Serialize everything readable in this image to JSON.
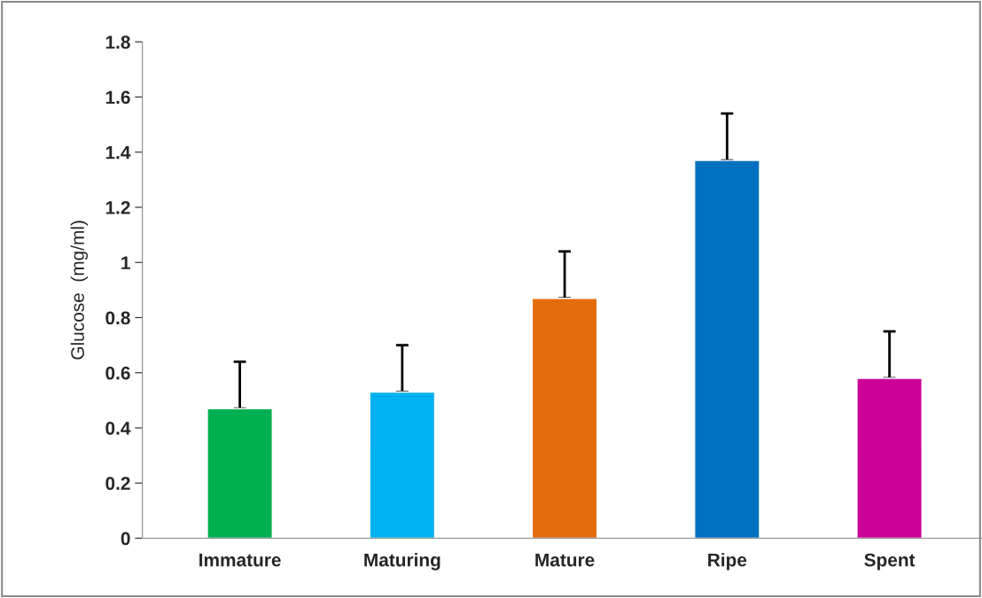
{
  "chart_data": {
    "type": "bar",
    "ylabel": "Glucose  (mg/ml)",
    "categories": [
      "Immature",
      "Maturing",
      "Mature",
      "Ripe",
      "Spent"
    ],
    "values": [
      0.47,
      0.53,
      0.87,
      1.37,
      0.58
    ],
    "colors": [
      "#00b050",
      "#00b0f0",
      "#e36c09",
      "#0070c0",
      "#cc0099"
    ],
    "errors": [
      [
        0.47,
        0.64
      ],
      [
        0.53,
        0.7
      ],
      [
        0.87,
        1.04
      ],
      [
        1.37,
        1.54
      ],
      [
        0.58,
        0.75
      ]
    ],
    "ylim": [
      0,
      1.8
    ],
    "yticks": [
      0,
      0.2,
      0.4,
      0.6,
      0.8,
      1,
      1.2,
      1.4,
      1.6,
      1.8
    ],
    "grid": false,
    "legend": false
  }
}
